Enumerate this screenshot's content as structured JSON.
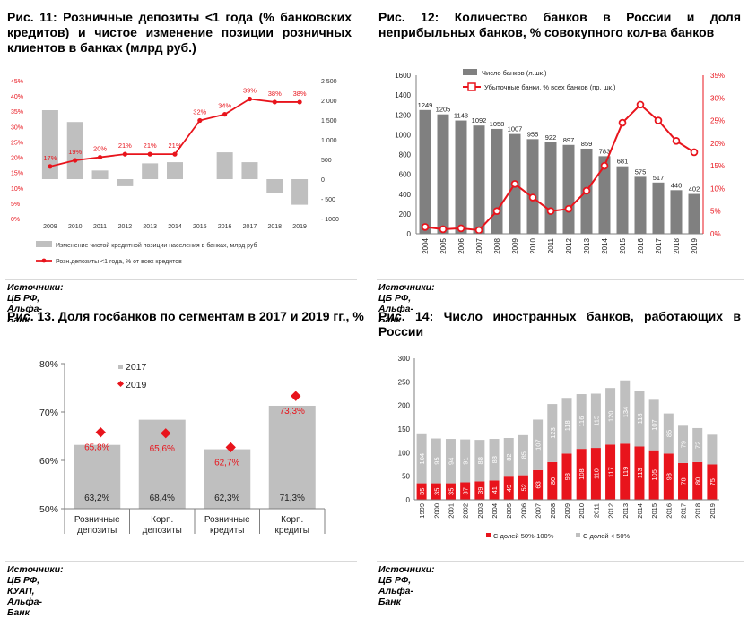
{
  "panels": {
    "p11": {
      "title": "Рис. 11: Розничные депозиты <1 года (% банковских кредитов) и чистое изменение позиции розничных клиентов  в банках (млрд руб.)",
      "source": "Источники: ЦБ РФ, Альфа-Банк"
    },
    "p12": {
      "title": "Рис.  12:  Количество  банков  в  России  и  доля неприбыльных банков, % совокупного кол-ва банков",
      "source": "Источники: ЦБ РФ, Альфа-Банк"
    },
    "p13": {
      "title": "Рис. 13. Доля госбанков по сегментам в 2017 и 2019 гг., %",
      "source": "Источники: ЦБ РФ, КУАП, Альфа-Банк"
    },
    "p14": {
      "title": "Рис.  14:  Число  иностранных  банков,  работающих  в России",
      "source": "Источники: ЦБ РФ, Альфа-Банк"
    }
  },
  "colors": {
    "red": "#e8141c",
    "grey": "#bfbfbf",
    "darkgrey": "#808080",
    "axis": "#7f7f7f"
  },
  "chart_data": [
    {
      "id": "fig11",
      "type": "bar+line",
      "categories": [
        "2009",
        "2010",
        "2011",
        "2012",
        "2013",
        "2014",
        "2015",
        "2016",
        "2017",
        "2018",
        "2019"
      ],
      "series": [
        {
          "name": "Изменение чистой кредитной позиции населения в банках, млрд руб",
          "type": "bar",
          "axis": "right",
          "values": [
            1750,
            1450,
            220,
            -180,
            400,
            430,
            0,
            680,
            430,
            -350,
            -650
          ]
        },
        {
          "name": "Розн.депозиты <1 года, % от всех кредитов",
          "type": "line",
          "axis": "left",
          "values": [
            17,
            19,
            20,
            21,
            21,
            21,
            32,
            34,
            39,
            38,
            38
          ]
        }
      ],
      "data_labels": [
        "17%",
        "19%",
        "20%",
        "21%",
        "21%",
        "21%",
        "32%",
        "34%",
        "39%",
        "38%",
        "38%"
      ],
      "yleft": {
        "min": 0,
        "max": 45,
        "ticks": [
          "0%",
          "5%",
          "10%",
          "15%",
          "20%",
          "25%",
          "30%",
          "35%",
          "40%",
          "45%"
        ]
      },
      "yright": {
        "min": -1000,
        "max": 2500,
        "ticks": [
          "- 1000",
          "- 500",
          "0",
          "500",
          "1 000",
          "1 500",
          "2 000",
          "2 500"
        ]
      },
      "legend_position": "bottom"
    },
    {
      "id": "fig12",
      "type": "bar+line",
      "categories": [
        "2004",
        "2005",
        "2006",
        "2007",
        "2008",
        "2009",
        "2010",
        "2011",
        "2012",
        "2013",
        "2014",
        "2015",
        "2016",
        "2017",
        "2018",
        "2019"
      ],
      "series": [
        {
          "name": "Число банков  (л.шк.)",
          "type": "bar",
          "axis": "left",
          "values": [
            1249,
            1205,
            1143,
            1092,
            1058,
            1007,
            955,
            922,
            897,
            859,
            783,
            681,
            575,
            517,
            440,
            402
          ]
        },
        {
          "name": "Убыточные банки, % всех банков (пр. шк.)",
          "type": "line",
          "axis": "right",
          "values": [
            1.5,
            1,
            1.2,
            0.8,
            5,
            11,
            8,
            5,
            5.5,
            9.5,
            15,
            24.5,
            28.5,
            25,
            20.5,
            18
          ]
        }
      ],
      "yleft": {
        "min": 0,
        "max": 1600,
        "ticks": [
          "0",
          "200",
          "400",
          "600",
          "800",
          "1000",
          "1200",
          "1400",
          "1600"
        ]
      },
      "yright": {
        "min": 0,
        "max": 35,
        "ticks": [
          "0%",
          "5%",
          "10%",
          "15%",
          "20%",
          "25%",
          "30%",
          "35%"
        ]
      },
      "legend_position": "top"
    },
    {
      "id": "fig13",
      "type": "bar+scatter",
      "categories": [
        "Розничные депозиты",
        "Корп. депозиты",
        "Розничные кредиты",
        "Корп. кредиты"
      ],
      "category_lines": [
        [
          "Розничные",
          "депозиты"
        ],
        [
          "Корп.",
          "депозиты"
        ],
        [
          "Розничные",
          "кредиты"
        ],
        [
          "Корп.",
          "кредиты"
        ]
      ],
      "series": [
        {
          "name": "2017",
          "type": "bar",
          "values": [
            63.2,
            68.4,
            62.3,
            71.3
          ],
          "labels": [
            "63,2%",
            "68,4%",
            "62,3%",
            "71,3%"
          ]
        },
        {
          "name": "2019",
          "type": "marker",
          "values": [
            65.8,
            65.6,
            62.7,
            73.3
          ],
          "labels": [
            "65,8%",
            "65,6%",
            "62,7%",
            "73,3%"
          ]
        }
      ],
      "ylim": [
        50,
        80
      ],
      "ticks": [
        "50%",
        "60%",
        "70%",
        "80%"
      ],
      "legend_position": "top-left"
    },
    {
      "id": "fig14",
      "type": "stacked-bar",
      "categories": [
        "1999",
        "2000",
        "2001",
        "2002",
        "2003",
        "2004",
        "2005",
        "2006",
        "2007",
        "2008",
        "2009",
        "2010",
        "2011",
        "2012",
        "2013",
        "2014",
        "2015",
        "2016",
        "2017",
        "2018",
        "2019"
      ],
      "series": [
        {
          "name": "С долей 50%-100%",
          "values": [
            35,
            35,
            35,
            37,
            39,
            41,
            49,
            52,
            63,
            80,
            98,
            108,
            110,
            117,
            119,
            113,
            105,
            98,
            78,
            80,
            75
          ]
        },
        {
          "name": "С долей < 50%",
          "values": [
            104,
            95,
            94,
            91,
            88,
            88,
            82,
            85,
            107,
            123,
            118,
            116,
            115,
            120,
            134,
            118,
            107,
            85,
            79,
            72,
            null
          ]
        }
      ],
      "ylim": [
        0,
        300
      ],
      "ticks": [
        "0",
        "50",
        "100",
        "150",
        "200",
        "250",
        "300"
      ],
      "legend_position": "bottom"
    }
  ]
}
